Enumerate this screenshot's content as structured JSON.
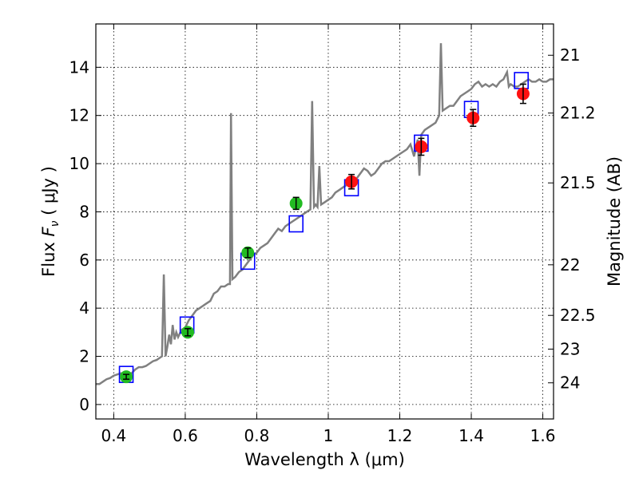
{
  "chart_data": {
    "type": "scatter",
    "xlabel": "Wavelength  λ (μm)",
    "ylabel_prefix": "Flux  ",
    "ylabel_symbol": "F",
    "ylabel_sub": "ν",
    "ylabel_suffix": "  ( μJy )",
    "y2label": "Magnitude (AB)",
    "xlim": [
      0.35,
      1.63
    ],
    "ylim": [
      -0.6,
      15.8
    ],
    "xticks": [
      0.4,
      0.6,
      0.8,
      1.0,
      1.2,
      1.4,
      1.6
    ],
    "xtick_labels": [
      "0.4",
      "0.6",
      "0.8",
      "1",
      "1.2",
      "1.4",
      "1.6"
    ],
    "yticks": [
      0,
      2,
      4,
      6,
      8,
      10,
      12,
      14
    ],
    "ytick_labels": [
      "0",
      "2",
      "4",
      "6",
      "8",
      "10",
      "12",
      "14"
    ],
    "y2ticks": [
      {
        "label": "21",
        "flux": 14.5
      },
      {
        "label": "21.2",
        "flux": 12.1
      },
      {
        "label": "21.5",
        "flux": 9.2
      },
      {
        "label": "22",
        "flux": 5.8
      },
      {
        "label": "22.5",
        "flux": 3.7
      },
      {
        "label": "23",
        "flux": 2.3
      },
      {
        "label": "24",
        "flux": 0.9
      }
    ],
    "grid": true,
    "spectrum": {
      "color": "#808080",
      "points": [
        [
          0.35,
          0.85
        ],
        [
          0.36,
          0.85
        ],
        [
          0.37,
          0.95
        ],
        [
          0.38,
          1.05
        ],
        [
          0.39,
          1.1
        ],
        [
          0.4,
          1.2
        ],
        [
          0.41,
          1.25
        ],
        [
          0.42,
          1.3
        ],
        [
          0.43,
          1.25
        ],
        [
          0.44,
          1.2
        ],
        [
          0.45,
          1.3
        ],
        [
          0.46,
          1.45
        ],
        [
          0.47,
          1.55
        ],
        [
          0.48,
          1.55
        ],
        [
          0.49,
          1.6
        ],
        [
          0.5,
          1.7
        ],
        [
          0.51,
          1.8
        ],
        [
          0.52,
          1.85
        ],
        [
          0.53,
          1.95
        ],
        [
          0.535,
          2.0
        ],
        [
          0.54,
          5.4
        ],
        [
          0.545,
          2.0
        ],
        [
          0.55,
          2.4
        ],
        [
          0.555,
          2.9
        ],
        [
          0.56,
          2.5
        ],
        [
          0.565,
          3.3
        ],
        [
          0.57,
          2.7
        ],
        [
          0.575,
          3.0
        ],
        [
          0.58,
          2.8
        ],
        [
          0.59,
          3.1
        ],
        [
          0.6,
          3.2
        ],
        [
          0.61,
          3.5
        ],
        [
          0.62,
          3.7
        ],
        [
          0.63,
          3.9
        ],
        [
          0.64,
          4.0
        ],
        [
          0.65,
          4.1
        ],
        [
          0.66,
          4.2
        ],
        [
          0.67,
          4.3
        ],
        [
          0.68,
          4.6
        ],
        [
          0.69,
          4.7
        ],
        [
          0.7,
          4.9
        ],
        [
          0.71,
          4.9
        ],
        [
          0.72,
          5.0
        ],
        [
          0.725,
          5.0
        ],
        [
          0.728,
          12.1
        ],
        [
          0.732,
          5.2
        ],
        [
          0.74,
          5.3
        ],
        [
          0.75,
          5.5
        ],
        [
          0.76,
          5.6
        ],
        [
          0.77,
          5.8
        ],
        [
          0.78,
          6.0
        ],
        [
          0.79,
          6.2
        ],
        [
          0.8,
          6.3
        ],
        [
          0.81,
          6.5
        ],
        [
          0.82,
          6.6
        ],
        [
          0.83,
          6.7
        ],
        [
          0.84,
          6.9
        ],
        [
          0.85,
          7.1
        ],
        [
          0.86,
          7.3
        ],
        [
          0.87,
          7.2
        ],
        [
          0.88,
          7.4
        ],
        [
          0.89,
          7.5
        ],
        [
          0.9,
          7.6
        ],
        [
          0.91,
          7.7
        ],
        [
          0.92,
          7.8
        ],
        [
          0.93,
          7.9
        ],
        [
          0.94,
          8.0
        ],
        [
          0.95,
          8.1
        ],
        [
          0.955,
          12.6
        ],
        [
          0.96,
          8.2
        ],
        [
          0.965,
          8.3
        ],
        [
          0.97,
          8.2
        ],
        [
          0.975,
          9.9
        ],
        [
          0.98,
          8.3
        ],
        [
          0.99,
          8.4
        ],
        [
          1.0,
          8.5
        ],
        [
          1.01,
          8.6
        ],
        [
          1.02,
          8.8
        ],
        [
          1.03,
          8.9
        ],
        [
          1.04,
          9.0
        ],
        [
          1.05,
          9.1
        ],
        [
          1.06,
          9.2
        ],
        [
          1.07,
          9.3
        ],
        [
          1.08,
          9.4
        ],
        [
          1.09,
          9.6
        ],
        [
          1.1,
          9.8
        ],
        [
          1.11,
          9.7
        ],
        [
          1.12,
          9.5
        ],
        [
          1.13,
          9.6
        ],
        [
          1.14,
          9.8
        ],
        [
          1.15,
          10.0
        ],
        [
          1.16,
          10.1
        ],
        [
          1.17,
          10.1
        ],
        [
          1.18,
          10.2
        ],
        [
          1.19,
          10.3
        ],
        [
          1.2,
          10.4
        ],
        [
          1.21,
          10.5
        ],
        [
          1.22,
          10.6
        ],
        [
          1.23,
          10.8
        ],
        [
          1.24,
          10.3
        ],
        [
          1.25,
          11.0
        ],
        [
          1.255,
          9.5
        ],
        [
          1.26,
          11.2
        ],
        [
          1.27,
          11.4
        ],
        [
          1.28,
          11.5
        ],
        [
          1.29,
          11.6
        ],
        [
          1.3,
          11.7
        ],
        [
          1.31,
          12.0
        ],
        [
          1.315,
          15.0
        ],
        [
          1.32,
          12.2
        ],
        [
          1.33,
          12.3
        ],
        [
          1.34,
          12.4
        ],
        [
          1.35,
          12.4
        ],
        [
          1.36,
          12.6
        ],
        [
          1.37,
          12.8
        ],
        [
          1.38,
          12.9
        ],
        [
          1.39,
          13.0
        ],
        [
          1.4,
          13.1
        ],
        [
          1.41,
          13.3
        ],
        [
          1.42,
          13.4
        ],
        [
          1.43,
          13.2
        ],
        [
          1.44,
          13.3
        ],
        [
          1.45,
          13.2
        ],
        [
          1.46,
          13.3
        ],
        [
          1.47,
          13.2
        ],
        [
          1.48,
          13.4
        ],
        [
          1.49,
          13.5
        ],
        [
          1.5,
          13.8
        ],
        [
          1.505,
          13.2
        ],
        [
          1.51,
          13.3
        ],
        [
          1.52,
          13.2
        ],
        [
          1.53,
          13.2
        ],
        [
          1.54,
          13.3
        ],
        [
          1.55,
          13.4
        ],
        [
          1.56,
          13.5
        ],
        [
          1.57,
          13.4
        ],
        [
          1.58,
          13.4
        ],
        [
          1.59,
          13.5
        ],
        [
          1.6,
          13.4
        ],
        [
          1.61,
          13.4
        ],
        [
          1.62,
          13.5
        ],
        [
          1.63,
          13.5
        ]
      ]
    },
    "model_boxes": {
      "color": "#0000ff",
      "points": [
        [
          0.435,
          1.25
        ],
        [
          0.605,
          3.3
        ],
        [
          0.775,
          5.95
        ],
        [
          0.91,
          7.5
        ],
        [
          1.065,
          9.0
        ],
        [
          1.26,
          10.85
        ],
        [
          1.4,
          12.25
        ],
        [
          1.54,
          13.45
        ]
      ]
    },
    "optical_points": {
      "color": "#22bb22",
      "points": [
        {
          "x": 0.435,
          "y": 1.15,
          "err": 0.1
        },
        {
          "x": 0.607,
          "y": 3.0,
          "err": 0.15
        },
        {
          "x": 0.775,
          "y": 6.3,
          "err": 0.2
        },
        {
          "x": 0.91,
          "y": 8.35,
          "err": 0.25
        }
      ]
    },
    "nir_points": {
      "color": "#ff1111",
      "points": [
        {
          "x": 1.065,
          "y": 9.25,
          "err": 0.3
        },
        {
          "x": 1.26,
          "y": 10.7,
          "err": 0.35
        },
        {
          "x": 1.405,
          "y": 11.9,
          "err": 0.35
        },
        {
          "x": 1.545,
          "y": 12.9,
          "err": 0.4
        }
      ]
    }
  }
}
